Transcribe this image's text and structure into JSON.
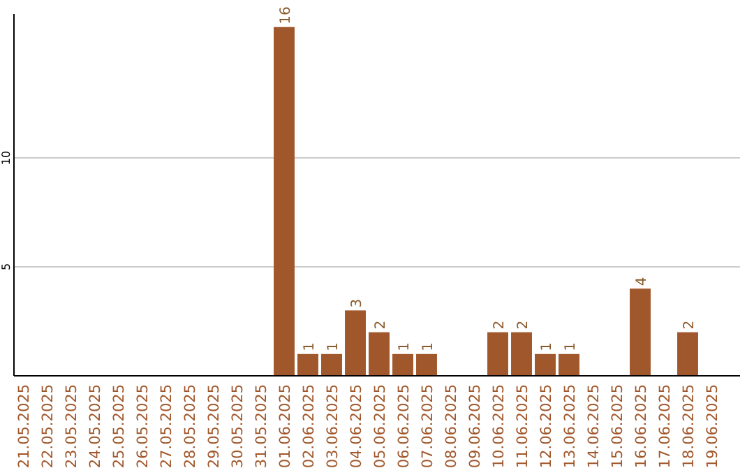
{
  "chart_data": {
    "type": "bar",
    "categories": [
      "21.05.2025",
      "22.05.2025",
      "23.05.2025",
      "24.05.2025",
      "25.05.2025",
      "26.05.2025",
      "27.05.2025",
      "28.05.2025",
      "29.05.2025",
      "30.05.2025",
      "31.05.2025",
      "01.06.2025",
      "02.06.2025",
      "03.06.2025",
      "04.06.2025",
      "05.06.2025",
      "06.06.2025",
      "07.06.2025",
      "08.06.2025",
      "09.06.2025",
      "10.06.2025",
      "11.06.2025",
      "12.06.2025",
      "13.06.2025",
      "14.06.2025",
      "15.06.2025",
      "16.06.2025",
      "17.06.2025",
      "18.06.2025",
      "19.06.2025"
    ],
    "values": [
      0,
      0,
      0,
      0,
      0,
      0,
      0,
      0,
      0,
      0,
      0,
      16,
      1,
      1,
      3,
      2,
      1,
      1,
      0,
      0,
      2,
      2,
      1,
      1,
      0,
      0,
      4,
      0,
      2,
      0
    ],
    "value_labels": [
      null,
      null,
      null,
      null,
      null,
      null,
      null,
      null,
      null,
      null,
      null,
      "16",
      "1",
      "1",
      "3",
      "2",
      "1",
      "1",
      null,
      null,
      "2",
      "2",
      "1",
      "1",
      null,
      null,
      "4",
      null,
      "2",
      null
    ],
    "color": "#a0572b",
    "ylim": [
      0,
      16.6
    ],
    "yticks": [
      5,
      10
    ],
    "grid": "y"
  }
}
